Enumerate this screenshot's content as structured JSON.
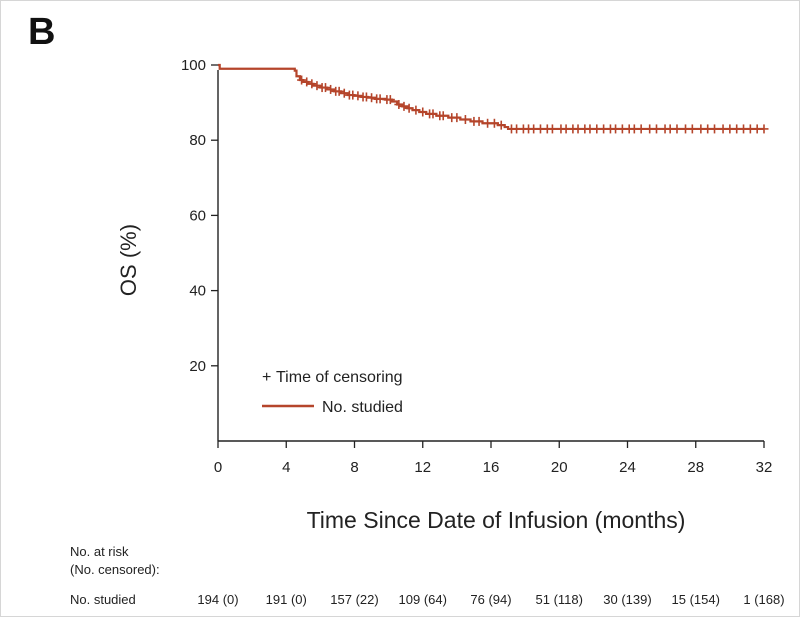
{
  "panel_label": "B",
  "chart_data": {
    "type": "line",
    "title": "",
    "xlabel": "Time Since Date of Infusion (months)",
    "ylabel": "OS (%)",
    "xlim": [
      0,
      32
    ],
    "ylim": [
      0,
      100
    ],
    "xticks": [
      0,
      4,
      8,
      12,
      16,
      20,
      24,
      28,
      32
    ],
    "yticks": [
      20,
      40,
      60,
      80,
      100
    ],
    "series": [
      {
        "name": "No. studied",
        "color": "#b5452b",
        "steps": [
          [
            0,
            100
          ],
          [
            0.1,
            99
          ],
          [
            4.5,
            98.5
          ],
          [
            4.6,
            97
          ],
          [
            4.8,
            96
          ],
          [
            5.0,
            95.5
          ],
          [
            5.3,
            95
          ],
          [
            5.6,
            94.5
          ],
          [
            6.0,
            94
          ],
          [
            6.4,
            93.5
          ],
          [
            6.8,
            93
          ],
          [
            7.2,
            92.5
          ],
          [
            7.6,
            92
          ],
          [
            8.0,
            91.8
          ],
          [
            8.4,
            91.5
          ],
          [
            8.8,
            91.3
          ],
          [
            9.2,
            91
          ],
          [
            9.8,
            90.8
          ],
          [
            10.2,
            90.3
          ],
          [
            10.5,
            89.5
          ],
          [
            10.8,
            89
          ],
          [
            11.1,
            88.5
          ],
          [
            11.4,
            88
          ],
          [
            11.8,
            87.5
          ],
          [
            12.2,
            87
          ],
          [
            12.8,
            86.5
          ],
          [
            13.5,
            86
          ],
          [
            14.2,
            85.5
          ],
          [
            14.8,
            85
          ],
          [
            15.5,
            84.5
          ],
          [
            16.4,
            84
          ],
          [
            16.8,
            83.5
          ],
          [
            17.0,
            83
          ],
          [
            32,
            83
          ]
        ],
        "censor_times": [
          4.9,
          5.2,
          5.5,
          5.8,
          6.1,
          6.3,
          6.6,
          6.9,
          7.1,
          7.4,
          7.7,
          7.9,
          8.2,
          8.5,
          8.7,
          9.0,
          9.3,
          9.5,
          9.9,
          10.1,
          10.6,
          10.9,
          11.2,
          11.6,
          12.0,
          12.4,
          12.6,
          13.0,
          13.2,
          13.7,
          14.0,
          14.5,
          15.0,
          15.3,
          15.8,
          16.2,
          16.6,
          17.2,
          17.5,
          17.9,
          18.2,
          18.5,
          18.9,
          19.3,
          19.6,
          20.1,
          20.4,
          20.8,
          21.1,
          21.5,
          21.8,
          22.2,
          22.6,
          23.0,
          23.3,
          23.7,
          24.1,
          24.4,
          24.8,
          25.3,
          25.7,
          26.2,
          26.5,
          26.9,
          27.4,
          27.8,
          28.3,
          28.7,
          29.1,
          29.6,
          30.0,
          30.4,
          30.8,
          31.2,
          31.6,
          32.0
        ]
      }
    ],
    "legend": [
      {
        "marker": "+",
        "label": "Time of censoring"
      },
      {
        "marker": "line",
        "label": "No. studied"
      }
    ],
    "legend_position": "bottom-left"
  },
  "risk_table": {
    "header_line1": "No. at risk",
    "header_line2": "(No. censored):",
    "row_label": "No. studied",
    "values": [
      "194 (0)",
      "191 (0)",
      "157 (22)",
      "109 (64)",
      "76 (94)",
      "51 (118)",
      "30 (139)",
      "15 (154)",
      "1 (168)"
    ]
  }
}
